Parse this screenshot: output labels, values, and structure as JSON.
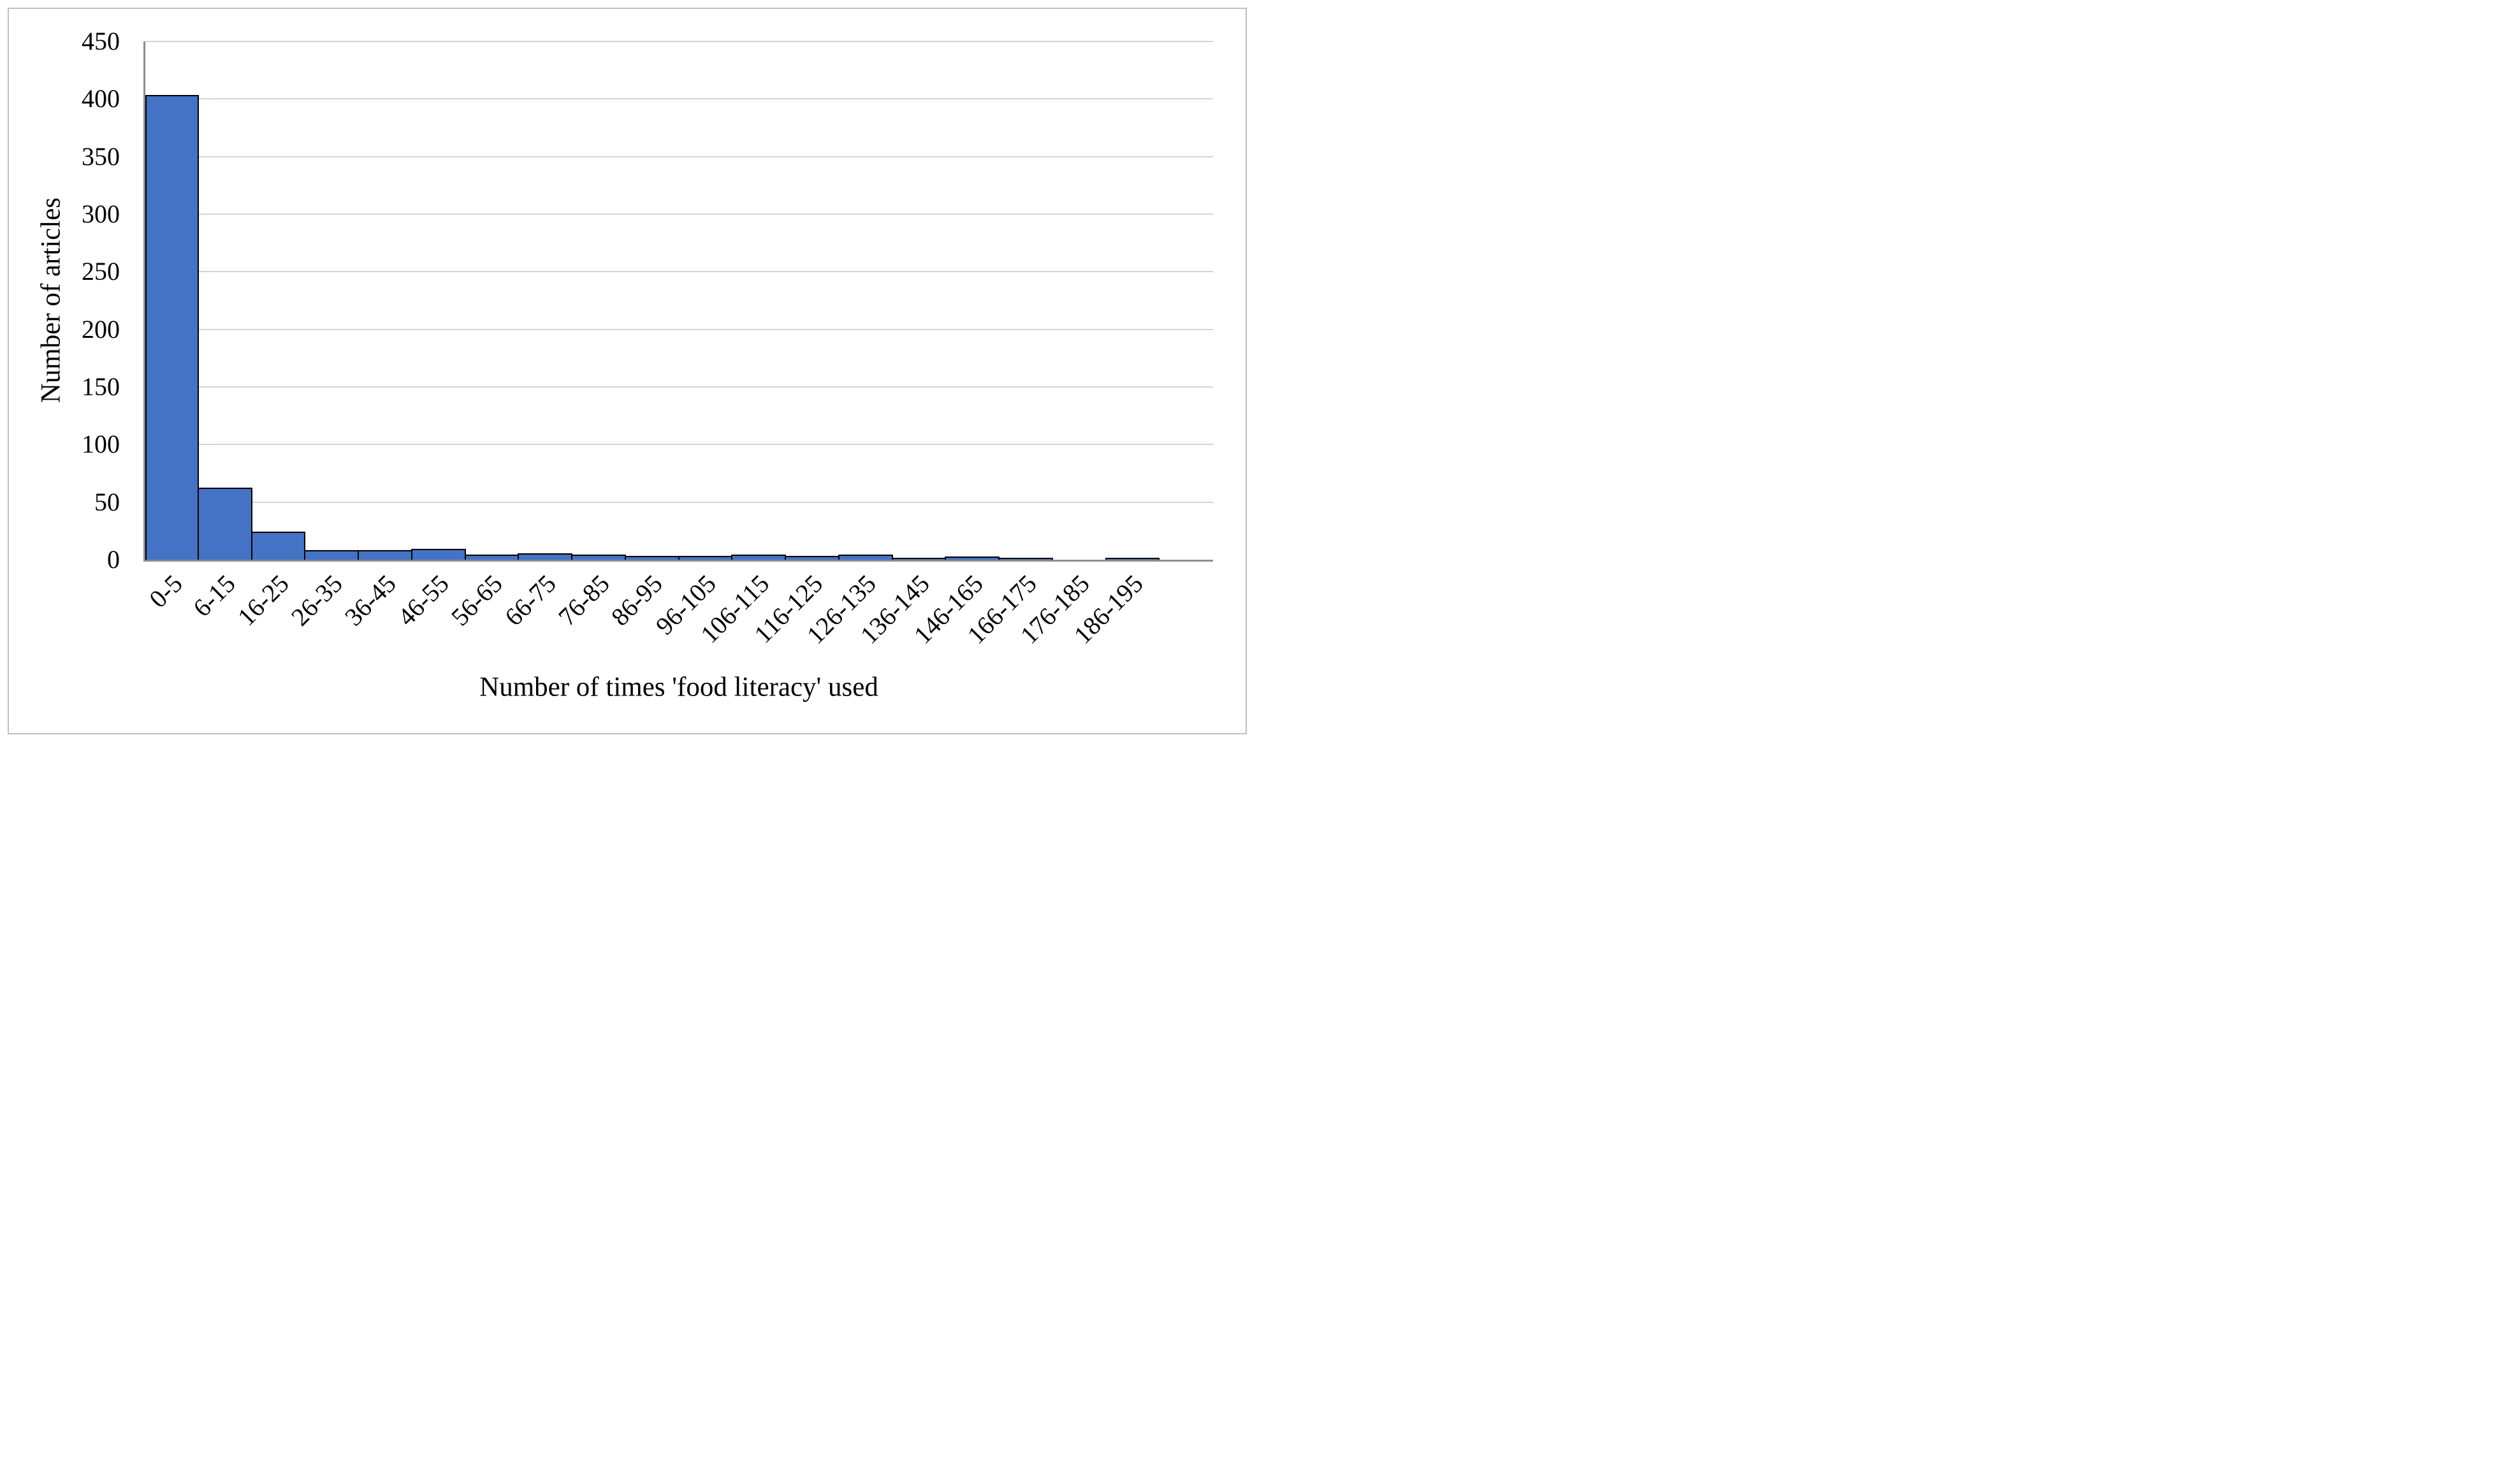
{
  "chart_data": {
    "type": "bar",
    "title": "",
    "xlabel": "Number of times 'food literacy' used",
    "ylabel": "Number of articles",
    "categories": [
      "0-5",
      "6-15",
      "16-25",
      "26-35",
      "36-45",
      "46-55",
      "56-65",
      "66-75",
      "76-85",
      "86-95",
      "96-105",
      "106-115",
      "116-125",
      "126-135",
      "136-145",
      "146-165",
      "166-175",
      "176-185",
      "186-195"
    ],
    "values": [
      403,
      62,
      24,
      8,
      8,
      9,
      4,
      5,
      4,
      3,
      3,
      4,
      3,
      4,
      1,
      2,
      1,
      0,
      1
    ],
    "ylim": [
      0,
      450
    ],
    "yticks": [
      0,
      50,
      100,
      150,
      200,
      250,
      300,
      350,
      400,
      450
    ],
    "grid": "horizontal",
    "legend": "none",
    "bar_gap": 0,
    "trailing_empty_slots": 1,
    "colors": {
      "bar_fill": "#4472C4",
      "bar_border": "#000000",
      "gridline": "#D4D4D4",
      "axis": "#8C8C8C",
      "figure_border": "#BFBFBF",
      "text": "#000000",
      "background": "#FFFFFF"
    }
  }
}
